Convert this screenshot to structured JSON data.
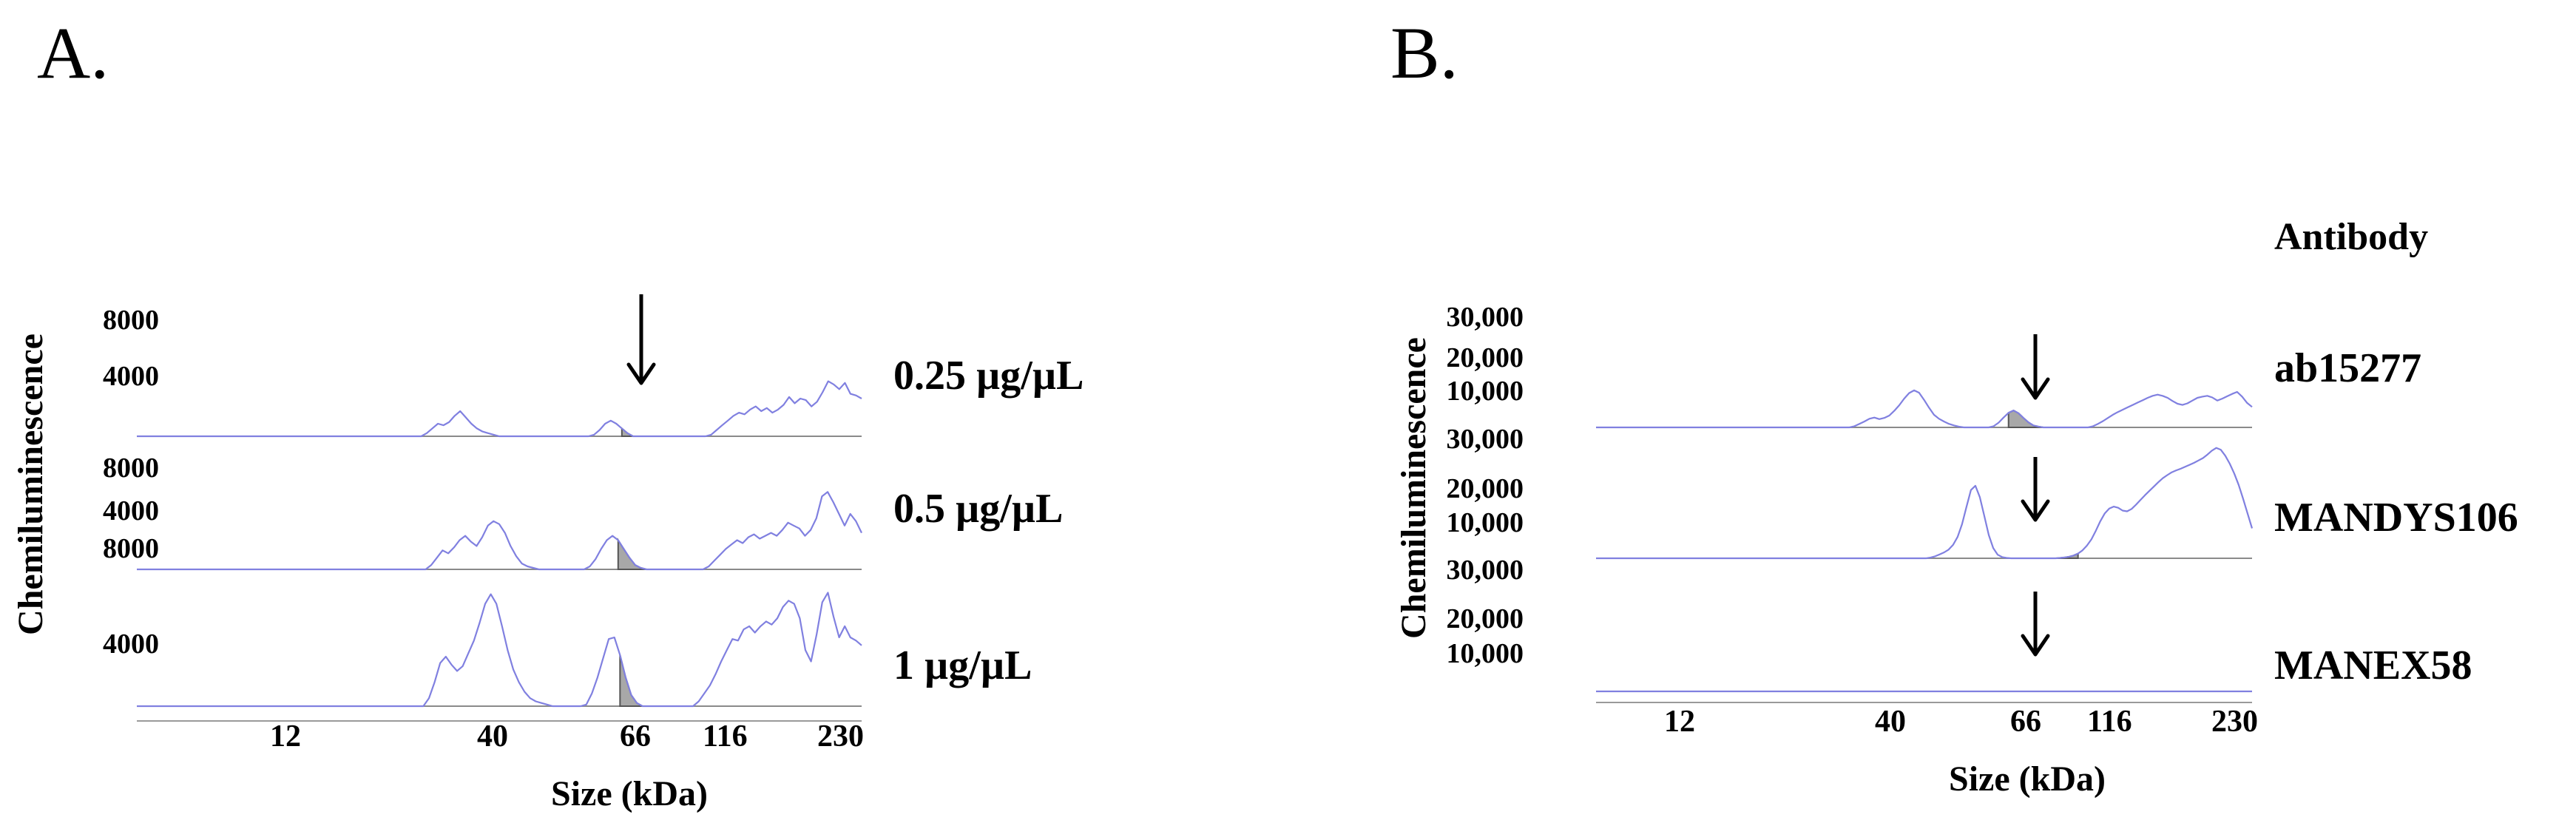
{
  "chart_data": [
    {
      "type": "line",
      "panel": "A.",
      "ylabel": "Chemiluminescence",
      "xlabel": "Size (kDa)",
      "x_ticks": [
        "12",
        "40",
        "66",
        "116",
        "230"
      ],
      "y_ticks": [
        "8000",
        "4000"
      ],
      "ylim": [
        0,
        8000
      ],
      "rows": [
        {
          "label": "0.25 µg/µL",
          "series": {
            "name": "0.25 µg/µL",
            "peak_kda": 66,
            "values": [
              0,
              0,
              0,
              0,
              0,
              0,
              0,
              0,
              0,
              0,
              0,
              0,
              0,
              0,
              0,
              0,
              0,
              0,
              0,
              0,
              0,
              0,
              0,
              0,
              0,
              0,
              0,
              0,
              0,
              0,
              0,
              0,
              0,
              0,
              0,
              0,
              0,
              0,
              0,
              0,
              0,
              0,
              0,
              0,
              0,
              0,
              0,
              0,
              0,
              0,
              0,
              0,
              200,
              500,
              800,
              700,
              900,
              1300,
              1600,
              1200,
              800,
              500,
              300,
              200,
              100,
              0,
              0,
              0,
              0,
              0,
              0,
              0,
              0,
              0,
              0,
              0,
              0,
              0,
              0,
              0,
              0,
              0,
              100,
              400,
              800,
              1000,
              800,
              500,
              200,
              0,
              0,
              0,
              0,
              0,
              0,
              0,
              0,
              0,
              0,
              0,
              0,
              0,
              0,
              100,
              400,
              700,
              1000,
              1300,
              1500,
              1400,
              1700,
              1900,
              1600,
              1800,
              1500,
              1700,
              2000,
              2500,
              2100,
              2400,
              2300,
              1900,
              2200,
              2800,
              3500,
              3300,
              3000,
              3400,
              2700,
              2600,
              2400
            ]
          }
        },
        {
          "label": "0.5 µg/µL",
          "series": {
            "name": "0.5 µg/µL",
            "peak_kda": 66,
            "values": [
              0,
              0,
              0,
              0,
              0,
              0,
              0,
              0,
              0,
              0,
              0,
              0,
              0,
              0,
              0,
              0,
              0,
              0,
              0,
              0,
              0,
              0,
              0,
              0,
              0,
              0,
              0,
              0,
              0,
              0,
              0,
              0,
              0,
              0,
              0,
              0,
              0,
              0,
              0,
              0,
              0,
              0,
              0,
              0,
              0,
              0,
              0,
              0,
              0,
              0,
              0,
              0,
              300,
              800,
              1300,
              1100,
              1500,
              2000,
              2300,
              1900,
              1600,
              2200,
              3000,
              3300,
              3100,
              2500,
              1600,
              900,
              400,
              200,
              100,
              0,
              0,
              0,
              0,
              0,
              0,
              0,
              0,
              0,
              200,
              700,
              1400,
              2000,
              2300,
              2000,
              1400,
              800,
              300,
              100,
              0,
              0,
              0,
              0,
              0,
              0,
              0,
              0,
              0,
              0,
              0,
              200,
              600,
              1000,
              1400,
              1700,
              2000,
              1800,
              2200,
              2400,
              2100,
              2300,
              2500,
              2300,
              2700,
              3200,
              3000,
              2800,
              2300,
              2700,
              3500,
              5000,
              5300,
              4600,
              3800,
              3000,
              3800,
              3300,
              2500
            ]
          }
        },
        {
          "label": "1 µg/µL",
          "series": {
            "name": "1 µg/µL",
            "peak_kda": 66,
            "values": [
              0,
              0,
              0,
              0,
              0,
              0,
              0,
              0,
              0,
              0,
              0,
              0,
              0,
              0,
              0,
              0,
              0,
              0,
              0,
              0,
              0,
              0,
              0,
              0,
              0,
              0,
              0,
              0,
              0,
              0,
              0,
              0,
              0,
              0,
              0,
              0,
              0,
              0,
              0,
              0,
              0,
              0,
              0,
              0,
              0,
              0,
              0,
              0,
              0,
              0,
              0,
              0,
              500,
              1500,
              2700,
              3100,
              2600,
              2200,
              2500,
              3300,
              4100,
              5200,
              6400,
              7000,
              6400,
              5000,
              3500,
              2300,
              1500,
              900,
              500,
              300,
              200,
              100,
              0,
              0,
              0,
              0,
              0,
              0,
              100,
              800,
              1800,
              3000,
              4200,
              4300,
              3200,
              1800,
              700,
              200,
              0,
              0,
              0,
              0,
              0,
              0,
              0,
              0,
              0,
              0,
              300,
              800,
              1300,
              2000,
              2800,
              3500,
              4200,
              4100,
              4800,
              5000,
              4600,
              5000,
              5300,
              5100,
              5500,
              6200,
              6600,
              6400,
              5500,
              3500,
              2800,
              4500,
              6500,
              7100,
              5600,
              4300,
              5000,
              4300,
              4100,
              3800
            ]
          }
        }
      ]
    },
    {
      "type": "line",
      "panel": "B.",
      "ylabel": "Chemiluminescence",
      "xlabel": "Size (kDa)",
      "legend_title": "Antibody",
      "x_ticks": [
        "12",
        "40",
        "66",
        "116",
        "230"
      ],
      "y_ticks": [
        "30,000",
        "20,000",
        "10,000"
      ],
      "ylim": [
        0,
        30000
      ],
      "rows": [
        {
          "label": "ab15277",
          "series": {
            "name": "ab15277",
            "peak_kda": 66,
            "values": [
              0,
              0,
              0,
              0,
              0,
              0,
              0,
              0,
              0,
              0,
              0,
              0,
              0,
              0,
              0,
              0,
              0,
              0,
              0,
              0,
              0,
              0,
              0,
              0,
              0,
              0,
              0,
              0,
              0,
              0,
              0,
              0,
              0,
              0,
              0,
              0,
              0,
              0,
              0,
              0,
              0,
              0,
              0,
              0,
              0,
              0,
              0,
              0,
              0,
              0,
              0,
              0,
              300,
              900,
              1500,
              2200,
              2500,
              2100,
              2400,
              3000,
              4200,
              5600,
              7300,
              8700,
              9400,
              8800,
              7000,
              5000,
              3200,
              2200,
              1500,
              900,
              500,
              200,
              0,
              0,
              0,
              0,
              0,
              0,
              300,
              1200,
              2500,
              3700,
              4300,
              3600,
              2400,
              1300,
              500,
              200,
              0,
              0,
              0,
              0,
              0,
              0,
              0,
              0,
              0,
              0,
              300,
              900,
              1600,
              2400,
              3200,
              3900,
              4500,
              5100,
              5700,
              6300,
              6900,
              7500,
              8000,
              8300,
              8000,
              7500,
              6700,
              6000,
              5700,
              6100,
              6800,
              7500,
              7800,
              8000,
              7600,
              6800,
              7300,
              7900,
              8500,
              9000,
              7800,
              6200,
              5200
            ]
          }
        },
        {
          "label": "MANDYS106",
          "series": {
            "name": "MANDYS106",
            "peak_kda": 66,
            "values": [
              0,
              0,
              0,
              0,
              0,
              0,
              0,
              0,
              0,
              0,
              0,
              0,
              0,
              0,
              0,
              0,
              0,
              0,
              0,
              0,
              0,
              0,
              0,
              0,
              0,
              0,
              0,
              0,
              0,
              0,
              0,
              0,
              0,
              0,
              0,
              0,
              0,
              0,
              0,
              0,
              0,
              0,
              0,
              0,
              0,
              0,
              0,
              0,
              0,
              0,
              0,
              0,
              0,
              0,
              0,
              0,
              0,
              0,
              0,
              0,
              0,
              0,
              0,
              0,
              0,
              0,
              0,
              0,
              0,
              0,
              0,
              0,
              0,
              0,
              0,
              200,
              500,
              1000,
              1500,
              2200,
              3400,
              5400,
              8600,
              13000,
              17300,
              18400,
              15500,
              10700,
              5900,
              2600,
              900,
              300,
              100,
              0,
              0,
              0,
              0,
              0,
              0,
              0,
              0,
              0,
              0,
              0,
              100,
              200,
              400,
              700,
              1200,
              2000,
              3200,
              4800,
              7000,
              9400,
              11400,
              12600,
              13100,
              12800,
              12100,
              11900,
              12500,
              13600,
              14800,
              16000,
              17100,
              18200,
              19300,
              20300,
              21100,
              21800,
              22300,
              22700,
              23200,
              23700,
              24200,
              24800,
              25400,
              26300,
              27300,
              28000,
              27500,
              26000,
              24000,
              21500,
              18600,
              15100,
              11300,
              7600
            ]
          }
        },
        {
          "label": "MANEX58",
          "series": {
            "name": "MANEX58",
            "peak_kda": 66,
            "values": [
              0,
              0,
              0,
              0,
              0,
              0,
              0,
              0,
              0,
              0,
              0,
              0,
              0,
              0,
              0,
              0,
              0,
              0,
              0,
              0,
              0,
              0,
              0,
              0,
              0,
              0,
              0,
              0,
              0,
              0,
              0,
              0,
              0,
              0,
              0,
              0,
              0,
              0,
              0,
              0,
              0,
              0,
              0,
              0,
              0,
              0,
              0,
              0,
              0,
              0,
              0,
              0,
              0,
              0,
              0,
              0,
              0,
              0,
              0,
              0,
              0,
              0,
              0,
              0,
              0,
              0,
              0,
              0,
              0,
              0,
              0,
              0,
              0,
              0,
              0,
              0,
              0,
              0,
              0,
              0,
              0,
              0,
              0,
              0,
              0,
              0,
              0,
              0,
              0,
              0,
              0,
              0,
              0,
              0,
              0,
              0,
              0,
              0,
              0,
              0,
              0,
              0,
              0,
              0,
              0,
              0,
              0,
              0,
              0,
              0,
              0,
              0,
              0,
              0,
              0,
              0,
              0,
              0,
              0,
              0,
              0,
              0,
              0,
              0,
              0,
              0,
              0,
              0,
              0,
              0,
              0,
              0,
              0,
              0,
              0,
              0,
              0,
              0,
              0,
              0,
              0,
              0,
              0,
              0,
              0,
              0,
              0,
              0,
              0,
              0,
              0,
              0,
              0,
              0,
              0,
              0,
              0,
              0,
              0,
              0,
              0,
              0,
              0,
              0,
              0,
              0,
              0,
              0,
              0,
              0
            ]
          }
        }
      ]
    }
  ]
}
